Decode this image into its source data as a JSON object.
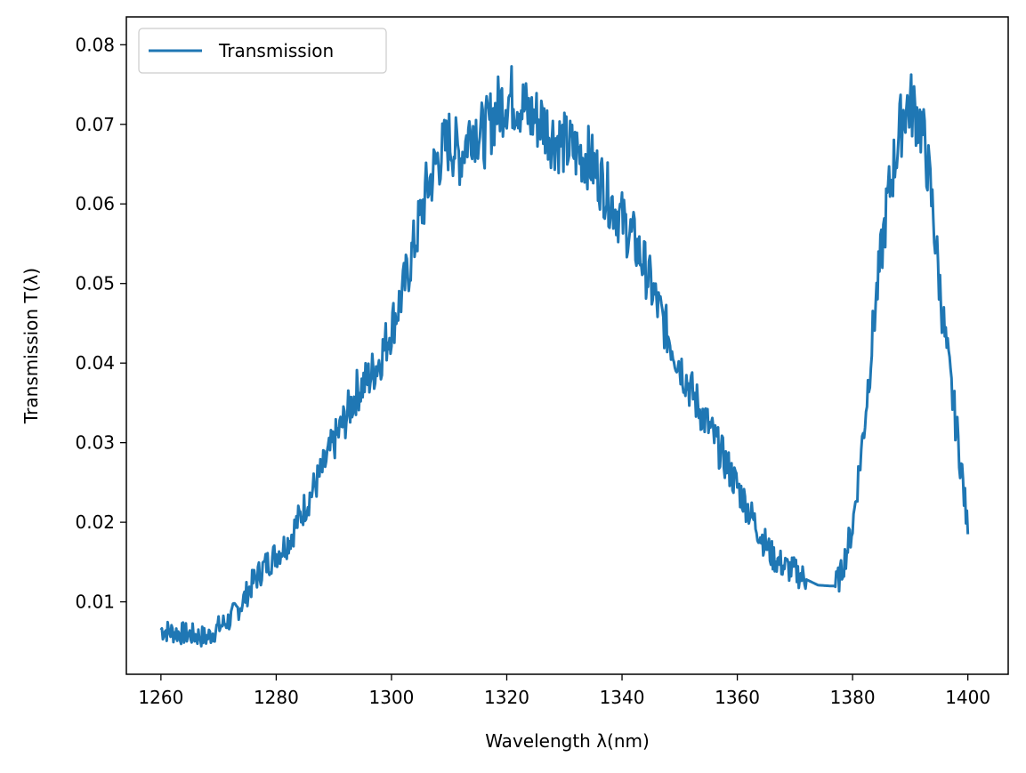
{
  "chart_data": {
    "type": "line",
    "xlabel": "Wavelength λ(nm)",
    "ylabel": "Transmission T(λ)",
    "xlim": [
      1254,
      1407
    ],
    "ylim": [
      0.0009,
      0.0835
    ],
    "xticks": [
      1260,
      1280,
      1300,
      1320,
      1340,
      1360,
      1380,
      1400
    ],
    "yticks": [
      0.01,
      0.02,
      0.03,
      0.04,
      0.05,
      0.06,
      0.07,
      0.08
    ],
    "xtick_labels": [
      "1260",
      "1280",
      "1300",
      "1320",
      "1340",
      "1360",
      "1380",
      "1400"
    ],
    "ytick_labels": [
      "0.01",
      "0.02",
      "0.03",
      "0.04",
      "0.05",
      "0.06",
      "0.07",
      "0.08"
    ],
    "grid": false,
    "legend": {
      "position": "top-left",
      "entries": [
        "Transmission"
      ]
    },
    "series": [
      {
        "name": "Transmission",
        "color": "#1f77b4",
        "x": [
          1260,
          1262,
          1264,
          1266,
          1268,
          1270,
          1272,
          1274,
          1276,
          1278,
          1280,
          1282,
          1284,
          1286,
          1288,
          1290,
          1292,
          1294,
          1296,
          1298,
          1300,
          1302,
          1304,
          1306,
          1308,
          1310,
          1312,
          1314,
          1316,
          1318,
          1320,
          1322,
          1324,
          1326,
          1328,
          1330,
          1332,
          1334,
          1336,
          1338,
          1340,
          1342,
          1344,
          1346,
          1348,
          1350,
          1352,
          1354,
          1356,
          1358,
          1360,
          1362,
          1364,
          1366,
          1368,
          1370,
          1372,
          1374,
          1376,
          1377,
          1378,
          1380,
          1382,
          1384,
          1386,
          1388,
          1389,
          1390,
          1391,
          1392,
          1393,
          1394,
          1395,
          1396,
          1397,
          1398,
          1399,
          1400
        ],
        "y": [
          0.0065,
          0.0062,
          0.006,
          0.0058,
          0.0055,
          0.0068,
          0.0078,
          0.0098,
          0.0125,
          0.0145,
          0.016,
          0.0175,
          0.0205,
          0.0235,
          0.0265,
          0.03,
          0.033,
          0.0365,
          0.038,
          0.0405,
          0.0445,
          0.049,
          0.055,
          0.0615,
          0.0655,
          0.068,
          0.066,
          0.07,
          0.0685,
          0.0715,
          0.0735,
          0.073,
          0.071,
          0.0705,
          0.0685,
          0.0675,
          0.0665,
          0.066,
          0.0635,
          0.0605,
          0.058,
          0.0555,
          0.052,
          0.0475,
          0.0435,
          0.04,
          0.0365,
          0.0335,
          0.0305,
          0.0275,
          0.0245,
          0.0215,
          0.0185,
          0.0158,
          0.0145,
          0.0138,
          0.0128,
          0.0121,
          0.012,
          0.012,
          0.0135,
          0.0195,
          0.032,
          0.0475,
          0.06,
          0.0685,
          0.072,
          0.0725,
          0.0715,
          0.0695,
          0.065,
          0.0585,
          0.0505,
          0.0435,
          0.0375,
          0.032,
          0.026,
          0.0185
        ]
      }
    ]
  }
}
